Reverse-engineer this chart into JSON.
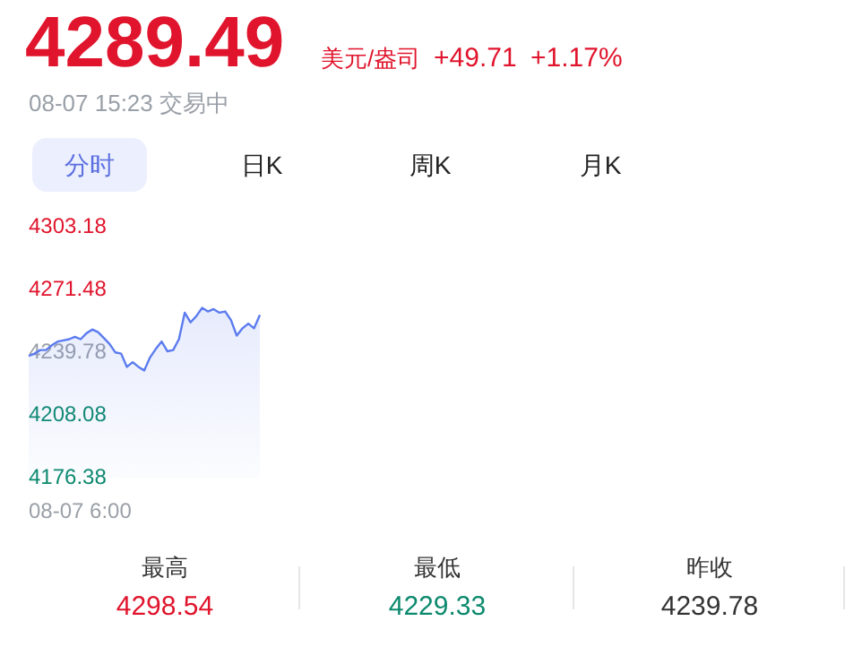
{
  "chart_data": {
    "type": "area",
    "title": "4289.49",
    "subtitle": "08-07 15:23 交易中",
    "annotations": [
      "美元/盎司",
      "+49.71",
      "+1.17%",
      "分时",
      "日K",
      "周K",
      "月K",
      "最高",
      "4298.54",
      "最低",
      "4229.33",
      "昨收",
      "4239.78",
      "08-07 6:00"
    ],
    "categories": [
      null,
      null,
      null,
      null,
      null,
      null,
      null,
      null,
      null,
      null,
      null,
      null,
      null,
      null,
      null,
      null,
      null,
      null,
      null,
      null,
      null,
      null,
      null,
      null,
      null,
      null,
      null,
      null,
      null,
      null,
      null,
      null,
      null,
      null,
      null,
      null,
      null,
      null,
      null,
      null,
      null
    ],
    "series": [
      {
        "color": "#5b7bef",
        "values": [
          4238.3,
          4239.5,
          4241.3,
          4241.3,
          4243.7,
          4245.6,
          4246.2,
          4246.8,
          4248.0,
          4246.8,
          4249.8,
          4251.7,
          4250.4,
          4247.4,
          4244.4,
          4240.1,
          4239.5,
          4232.8,
          4235.2,
          4232.8,
          4231.0,
          4237.6,
          4241.9,
          4245.6,
          4240.7,
          4241.3,
          4246.8,
          4260.2,
          4255.3,
          4258.4,
          4262.6,
          4260.8,
          4262.0,
          4260.2,
          4260.8,
          4256.5,
          4248.6,
          4252.3,
          4254.7,
          4252.3,
          4259.0
        ]
      }
    ],
    "ylim": [
      4176.38,
      4303.18
    ],
    "yticks": [
      {
        "value": 4303.18,
        "label": "4303.18"
      },
      {
        "value": 4271.48,
        "label": "4271.48"
      },
      {
        "value": 4239.78,
        "label": "4239.78"
      },
      {
        "value": 4208.08,
        "label": "4208.08"
      },
      {
        "value": 4176.38,
        "label": "4176.38"
      }
    ],
    "grid": false
  }
}
